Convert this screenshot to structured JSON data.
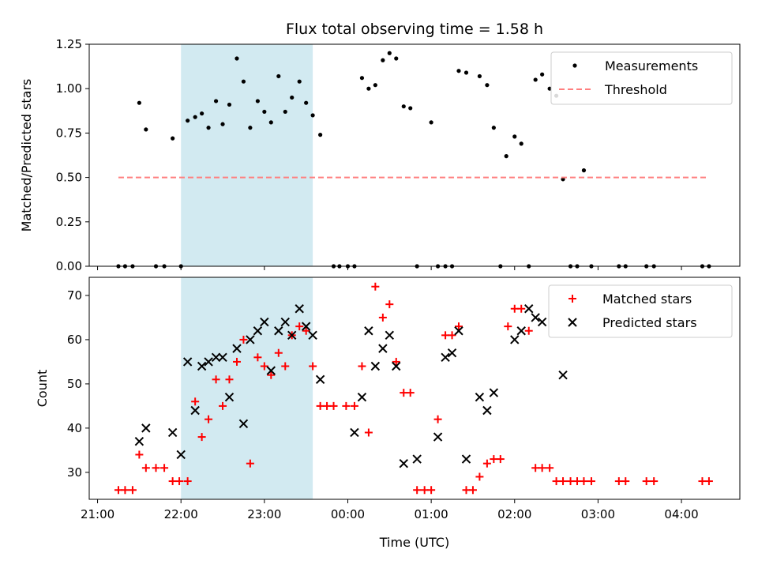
{
  "chart_data": {
    "title": "Flux total observing time = 1.58 h",
    "xlabel": "Time (UTC)",
    "x_unit": "hours after 21:00 UTC",
    "x_ticks": [
      "21:00",
      "22:00",
      "23:00",
      "00:00",
      "01:00",
      "02:00",
      "03:00",
      "04:00"
    ],
    "x_tick_values": [
      0,
      1,
      2,
      3,
      4,
      5,
      6,
      7
    ],
    "x_range": [
      -0.1,
      7.7
    ],
    "shaded_region": [
      1.0,
      2.58
    ],
    "shade_color": "#add8e6",
    "panels": [
      {
        "type": "scatter",
        "ylabel": "Matched/Predicted stars",
        "ylim": [
          0,
          1.25
        ],
        "y_ticks": [
          "0.00",
          "0.25",
          "0.50",
          "0.75",
          "1.00",
          "1.25"
        ],
        "y_tick_values": [
          0,
          0.25,
          0.5,
          0.75,
          1.0,
          1.25
        ],
        "legend_position": "top-right",
        "series": [
          {
            "name": "Measurements",
            "marker": "dot",
            "color": "#000000",
            "x": [
              0.25,
              0.33,
              0.42,
              0.5,
              0.58,
              0.7,
              0.8,
              0.9,
              1.0,
              1.08,
              1.17,
              1.25,
              1.33,
              1.42,
              1.5,
              1.58,
              1.67,
              1.75,
              1.83,
              1.92,
              2.0,
              2.08,
              2.17,
              2.25,
              2.33,
              2.42,
              2.5,
              2.58,
              2.67,
              2.83,
              2.9,
              3.0,
              3.08,
              3.17,
              3.25,
              3.33,
              3.42,
              3.5,
              3.58,
              3.67,
              3.75,
              3.83,
              4.0,
              4.08,
              4.17,
              4.25,
              4.33,
              4.42,
              4.58,
              4.67,
              4.75,
              4.83,
              4.9,
              5.0,
              5.08,
              5.17,
              5.25,
              5.33,
              5.42,
              5.5,
              5.58,
              5.67,
              5.75,
              5.83,
              5.92,
              6.25,
              6.33,
              6.58,
              6.67,
              7.25,
              7.33
            ],
            "y": [
              0,
              0,
              0,
              0.92,
              0.77,
              0,
              0,
              0.72,
              0,
              0.82,
              0.84,
              0.86,
              0.78,
              0.93,
              0.8,
              0.91,
              1.17,
              1.04,
              0.78,
              0.93,
              0.87,
              0.81,
              1.07,
              0.87,
              0.95,
              1.04,
              0.92,
              0.85,
              0.74,
              0,
              0,
              0,
              0,
              1.06,
              1.0,
              1.02,
              1.16,
              1.2,
              1.17,
              0.9,
              0.89,
              0,
              0.81,
              0,
              0,
              0,
              1.1,
              1.09,
              1.07,
              1.02,
              0.78,
              0,
              0.62,
              0.73,
              0.69,
              0,
              1.05,
              1.08,
              1.0,
              0.96,
              0.49,
              0,
              0,
              0.54,
              0,
              0,
              0,
              0,
              0,
              0,
              0
            ]
          },
          {
            "name": "Threshold",
            "type": "line",
            "style": "dashed",
            "color": "#ff7f7f",
            "x": [
              0.25,
              7.33
            ],
            "y": [
              0.5,
              0.5
            ]
          }
        ]
      },
      {
        "type": "scatter",
        "ylabel": "Count",
        "ylim": [
          23.9,
          74.1
        ],
        "y_ticks": [
          "30",
          "40",
          "50",
          "60",
          "70"
        ],
        "y_tick_values": [
          30,
          40,
          50,
          60,
          70
        ],
        "legend_position": "top-right",
        "series": [
          {
            "name": "Matched stars",
            "marker": "plus",
            "color": "#ff0000",
            "x": [
              0.25,
              0.33,
              0.42,
              0.5,
              0.58,
              0.7,
              0.8,
              0.9,
              0.98,
              1.08,
              1.17,
              1.25,
              1.33,
              1.42,
              1.5,
              1.58,
              1.67,
              1.75,
              1.83,
              1.92,
              2.0,
              2.08,
              2.17,
              2.25,
              2.33,
              2.42,
              2.5,
              2.58,
              2.67,
              2.75,
              2.83,
              2.98,
              3.08,
              3.17,
              3.25,
              3.33,
              3.42,
              3.5,
              3.58,
              3.67,
              3.75,
              3.83,
              3.92,
              4.0,
              4.08,
              4.17,
              4.25,
              4.33,
              4.42,
              4.5,
              4.58,
              4.67,
              4.75,
              4.83,
              4.92,
              5.0,
              5.08,
              5.17,
              5.25,
              5.33,
              5.42,
              5.5,
              5.58,
              5.67,
              5.75,
              5.83,
              5.92,
              6.25,
              6.33,
              6.58,
              6.67,
              7.25,
              7.33
            ],
            "y": [
              26,
              26,
              26,
              34,
              31,
              31,
              31,
              28,
              28,
              28,
              46,
              38,
              42,
              51,
              45,
              51,
              55,
              60,
              32,
              56,
              54,
              52,
              57,
              54,
              61,
              63,
              62,
              54,
              45,
              45,
              45,
              45,
              45,
              54,
              39,
              72,
              65,
              68,
              55,
              48,
              48,
              26,
              26,
              26,
              42,
              61,
              61,
              63,
              26,
              26,
              29,
              32,
              33,
              33,
              63,
              67,
              67,
              62,
              31,
              31,
              31,
              28,
              28,
              28,
              28,
              28,
              28,
              28,
              28,
              28,
              28,
              28,
              28
            ]
          },
          {
            "name": "Predicted stars",
            "marker": "x",
            "color": "#000000",
            "x": [
              0.5,
              0.58,
              0.9,
              1.0,
              1.08,
              1.17,
              1.25,
              1.33,
              1.42,
              1.5,
              1.58,
              1.67,
              1.75,
              1.83,
              1.92,
              2.0,
              2.08,
              2.17,
              2.25,
              2.33,
              2.42,
              2.5,
              2.58,
              2.67,
              3.08,
              3.17,
              3.25,
              3.33,
              3.42,
              3.5,
              3.58,
              3.67,
              3.83,
              4.08,
              4.17,
              4.25,
              4.33,
              4.42,
              4.58,
              4.67,
              4.75,
              5.0,
              5.08,
              5.17,
              5.25,
              5.33,
              5.58
            ],
            "y": [
              37,
              40,
              39,
              34,
              55,
              44,
              54,
              55,
              56,
              56,
              47,
              58,
              41,
              60,
              62,
              64,
              53,
              62,
              64,
              61,
              67,
              63,
              61,
              51,
              39,
              47,
              62,
              54,
              58,
              61,
              54,
              32,
              33,
              38,
              56,
              57,
              62,
              33,
              47,
              44,
              48,
              60,
              62,
              67,
              65,
              64,
              52
            ]
          }
        ]
      }
    ]
  }
}
